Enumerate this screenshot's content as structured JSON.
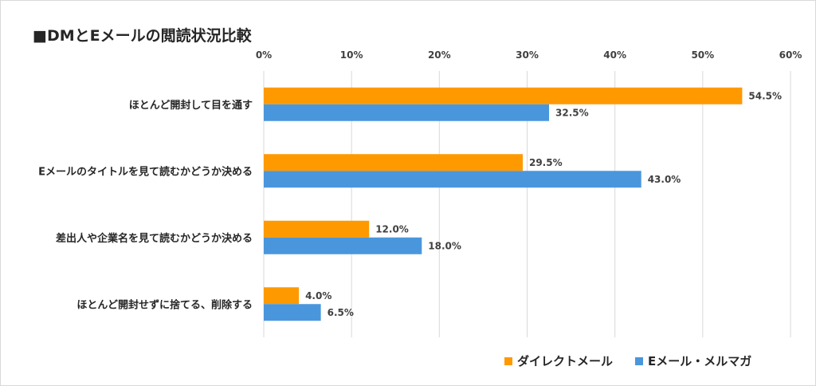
{
  "title": "■DMとEメールの閲読状況比較",
  "chart_data": {
    "type": "bar",
    "orientation": "horizontal",
    "categories": [
      "ほとんど開封して目を通す",
      "Eメールのタイトルを見て読むかどうか決める",
      "差出人や企業名を見て読むかどうか決める",
      "ほとんど開封せずに捨てる、削除する"
    ],
    "series": [
      {
        "name": "ダイレクトメール",
        "values": [
          54.5,
          29.5,
          12.0,
          4.0
        ],
        "color": "#ff9900"
      },
      {
        "name": "Eメール・メルマガ",
        "values": [
          32.5,
          43.0,
          18.0,
          6.5
        ],
        "color": "#4a96dd"
      }
    ],
    "xlim": [
      0,
      60
    ],
    "xticks": [
      "0%",
      "10%",
      "20%",
      "30%",
      "40%",
      "50%",
      "60%"
    ],
    "tick_values": [
      0,
      10,
      20,
      30,
      40,
      50,
      60
    ],
    "axis_position": "top",
    "grid": true,
    "legend_position": "bottom-right"
  }
}
